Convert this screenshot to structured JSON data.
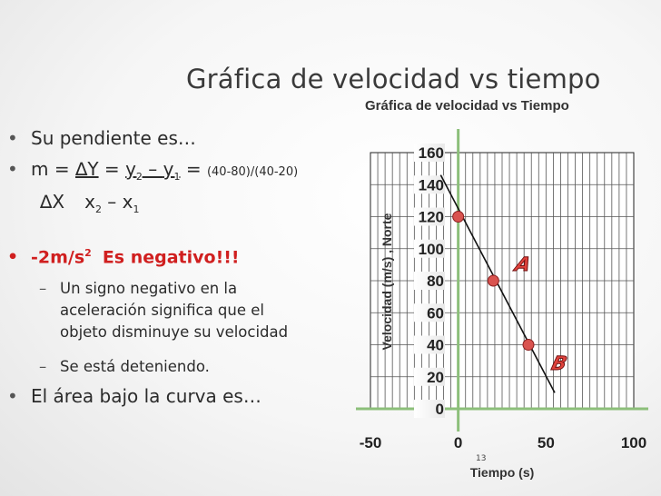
{
  "slide": {
    "title": "Gráfica de velocidad vs tiempo",
    "page_number": "13"
  },
  "bullets": {
    "b1": "Su pendiente es…",
    "b2_pre": "m = ",
    "b2_delta_y": "∆Y",
    "b2_mid": " = ",
    "b2_y2": "y",
    "b2_y2_sub": "2",
    "b2_minus": " – ",
    "b2_y1": "y",
    "b2_y1_sub": "1",
    "b2_eq": " = ",
    "b2_calc": "(40-80)/(40-20)",
    "b2_delta_x": "∆X",
    "b2_x2": "x",
    "b2_x2_sub": "2",
    "b2_x_minus": " – ",
    "b2_x1": "x",
    "b2_x1_sub": "1",
    "b3_value": "-2m/s",
    "b3_sup": "2",
    "b3_text": "Es negativo!!!",
    "b4": [
      "Un signo negativo en la",
      "aceleración significa que el",
      "objeto disminuye su velocidad"
    ],
    "b5": "Se está deteniendo.",
    "b6": "El área bajo la curva es…"
  },
  "colors": {
    "accent_red": "#d01f1f",
    "marker_fill": "#d9534f",
    "axis_green": "#8cbf7a",
    "line_black": "#111111"
  },
  "chart_data": {
    "type": "line",
    "title": "Gráfica de velocidad vs Tiempo",
    "xlabel": "Tiempo (s)",
    "ylabel": "Velocidad (m/s) , Norte",
    "xlim": [
      -50,
      100
    ],
    "ylim": [
      0,
      160
    ],
    "x_ticks": [
      "-50",
      "0",
      "50",
      "100"
    ],
    "y_ticks": [
      "0",
      "20",
      "40",
      "60",
      "80",
      "100",
      "120",
      "140",
      "160"
    ],
    "grid": true,
    "series": [
      {
        "x": [
          -10,
          55
        ],
        "y": [
          146,
          10
        ]
      }
    ],
    "points": [
      {
        "x": 0,
        "y": 120
      },
      {
        "x": 20,
        "y": 80
      },
      {
        "x": 40,
        "y": 40
      }
    ],
    "annotations": [
      "A",
      "B"
    ]
  }
}
